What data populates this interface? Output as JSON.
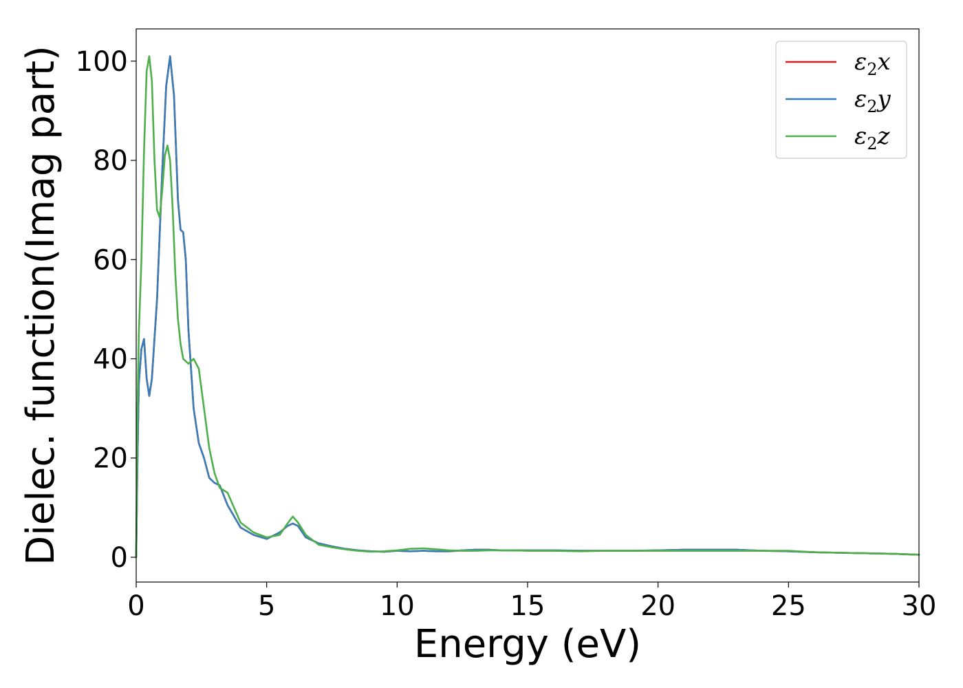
{
  "chart_data": {
    "type": "line",
    "xlabel": "Energy (eV)",
    "ylabel": "Dielec. function(Imag part)",
    "xlim": [
      0,
      30
    ],
    "ylim": [
      -5,
      106.5
    ],
    "xticks": [
      0,
      5,
      10,
      15,
      20,
      25,
      30
    ],
    "yticks": [
      0,
      20,
      40,
      60,
      80,
      100
    ],
    "grid": false,
    "legend_position": "top-right",
    "series": [
      {
        "name": "ε2x",
        "color": "#e41a1c",
        "x": [
          0,
          0.05,
          0.1,
          0.2,
          0.3,
          0.4,
          0.5,
          0.6,
          0.8,
          1.0,
          1.15,
          1.3,
          1.45,
          1.6,
          1.7,
          1.8,
          1.9,
          2.0,
          2.2,
          2.4,
          2.6,
          2.8,
          3.0,
          3.2,
          3.5,
          4.0,
          4.5,
          5.0,
          5.5,
          5.8,
          6.0,
          6.2,
          6.5,
          7.0,
          7.5,
          8.0,
          8.5,
          9.0,
          9.5,
          10.0,
          10.5,
          11.0,
          11.5,
          12.0,
          12.5,
          13.0,
          13.5,
          14.0,
          14.5,
          15.0,
          16.0,
          17.0,
          18.0,
          19.0,
          20.0,
          21.0,
          22.0,
          23.0,
          24.0,
          25.0,
          26.0,
          27.0,
          28.0,
          29.0,
          30.0
        ],
        "y": [
          0,
          20,
          35,
          42,
          44,
          36,
          32.5,
          36,
          52,
          78,
          95,
          101,
          93,
          72,
          66,
          65.5,
          60,
          46,
          30,
          23,
          20,
          16,
          15,
          14.5,
          10.5,
          6,
          4.5,
          3.7,
          5,
          6.3,
          6.8,
          6.3,
          4,
          2.8,
          2.2,
          1.7,
          1.4,
          1.2,
          1.1,
          1.3,
          1.2,
          1.3,
          1.2,
          1.2,
          1.4,
          1.5,
          1.5,
          1.4,
          1.4,
          1.4,
          1.4,
          1.3,
          1.3,
          1.3,
          1.4,
          1.5,
          1.5,
          1.5,
          1.3,
          1.2,
          1.0,
          0.9,
          0.8,
          0.7,
          0.5
        ]
      },
      {
        "name": "ε2y",
        "color": "#377eb8",
        "x": [
          0,
          0.05,
          0.1,
          0.2,
          0.3,
          0.4,
          0.5,
          0.6,
          0.8,
          1.0,
          1.15,
          1.3,
          1.45,
          1.6,
          1.7,
          1.8,
          1.9,
          2.0,
          2.2,
          2.4,
          2.6,
          2.8,
          3.0,
          3.2,
          3.5,
          4.0,
          4.5,
          5.0,
          5.5,
          5.8,
          6.0,
          6.2,
          6.5,
          7.0,
          7.5,
          8.0,
          8.5,
          9.0,
          9.5,
          10.0,
          10.5,
          11.0,
          11.5,
          12.0,
          12.5,
          13.0,
          13.5,
          14.0,
          14.5,
          15.0,
          16.0,
          17.0,
          18.0,
          19.0,
          20.0,
          21.0,
          22.0,
          23.0,
          24.0,
          25.0,
          26.0,
          27.0,
          28.0,
          29.0,
          30.0
        ],
        "y": [
          0,
          20,
          35,
          42,
          44,
          36,
          32.5,
          36,
          52,
          78,
          95,
          101,
          93,
          72,
          66,
          65.5,
          60,
          46,
          30,
          23,
          20,
          16,
          15,
          14.5,
          10.5,
          6,
          4.5,
          3.7,
          5,
          6.3,
          6.8,
          6.3,
          4,
          2.8,
          2.2,
          1.7,
          1.4,
          1.2,
          1.1,
          1.3,
          1.2,
          1.3,
          1.2,
          1.2,
          1.4,
          1.5,
          1.5,
          1.4,
          1.4,
          1.4,
          1.4,
          1.3,
          1.3,
          1.3,
          1.4,
          1.5,
          1.5,
          1.5,
          1.3,
          1.2,
          1.0,
          0.9,
          0.8,
          0.7,
          0.5
        ]
      },
      {
        "name": "ε2z",
        "color": "#4daf4a",
        "x": [
          0,
          0.05,
          0.1,
          0.2,
          0.3,
          0.4,
          0.5,
          0.6,
          0.7,
          0.8,
          0.9,
          1.0,
          1.1,
          1.2,
          1.3,
          1.4,
          1.5,
          1.6,
          1.7,
          1.8,
          2.0,
          2.2,
          2.4,
          2.6,
          2.8,
          3.0,
          3.2,
          3.5,
          4.0,
          4.5,
          5.0,
          5.5,
          5.8,
          6.0,
          6.2,
          6.5,
          7.0,
          7.5,
          8.0,
          8.5,
          9.0,
          9.5,
          10.0,
          10.5,
          11.0,
          11.5,
          12.0,
          12.5,
          13.0,
          13.5,
          14.0,
          14.5,
          15.0,
          16.0,
          17.0,
          18.0,
          19.0,
          20.0,
          21.0,
          22.0,
          23.0,
          24.0,
          25.0,
          26.0,
          27.0,
          28.0,
          29.0,
          30.0
        ],
        "y": [
          0,
          30,
          45,
          60,
          82,
          98,
          101,
          96,
          80,
          70,
          68.5,
          74,
          81,
          83,
          80,
          70,
          57,
          48,
          43,
          40,
          39,
          40,
          38,
          30,
          22,
          17,
          14,
          13,
          7,
          5,
          4,
          4.5,
          6.8,
          8.2,
          7,
          4.5,
          2.5,
          2.0,
          1.6,
          1.3,
          1.1,
          1.2,
          1.4,
          1.7,
          1.8,
          1.6,
          1.4,
          1.3,
          1.3,
          1.4,
          1.4,
          1.4,
          1.3,
          1.3,
          1.2,
          1.3,
          1.3,
          1.3,
          1.3,
          1.3,
          1.3,
          1.3,
          1.3,
          1.0,
          0.9,
          0.8,
          0.7,
          0.5
        ]
      }
    ]
  }
}
